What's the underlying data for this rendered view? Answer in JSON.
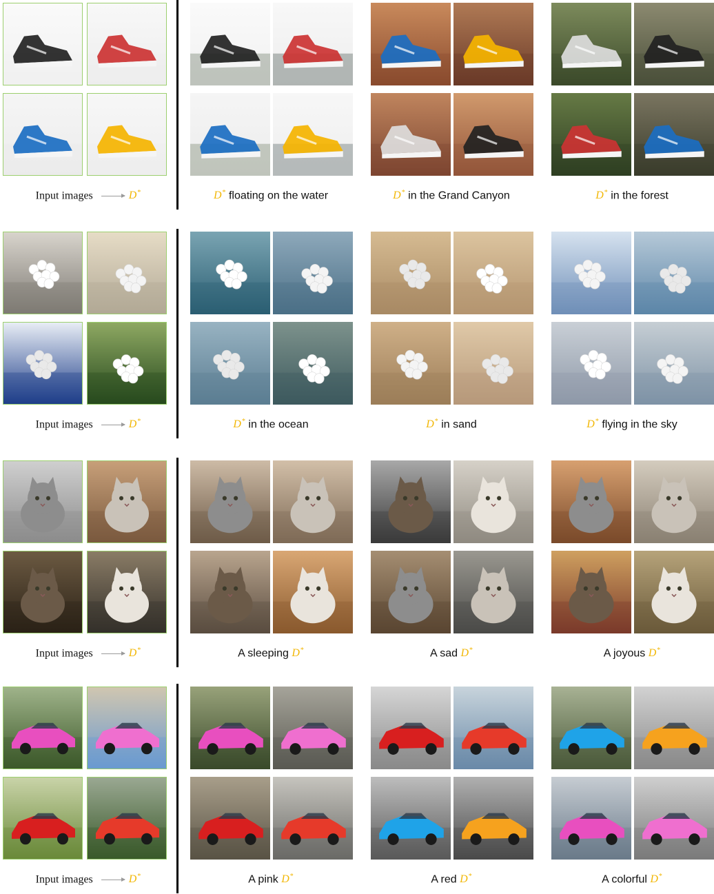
{
  "input_caption": "Input images",
  "token": "D",
  "token_sup": "*",
  "rows": [
    {
      "subject": "sneakers",
      "captions": [
        {
          "pre": "",
          "post": "floating on the water"
        },
        {
          "pre": "",
          "post": "in the Grand Canyon"
        },
        {
          "pre": "",
          "post": "in the forest"
        }
      ]
    },
    {
      "subject": "balloons",
      "captions": [
        {
          "pre": "",
          "post": "in the ocean"
        },
        {
          "pre": "",
          "post": "in sand"
        },
        {
          "pre": "",
          "post": "flying in the sky"
        }
      ]
    },
    {
      "subject": "cat",
      "captions": [
        {
          "pre": "A sleeping",
          "post": ""
        },
        {
          "pre": "A sad",
          "post": ""
        },
        {
          "pre": "A joyous",
          "post": ""
        }
      ]
    },
    {
      "subject": "car",
      "captions": [
        {
          "pre": "A pink",
          "post": ""
        },
        {
          "pre": "A red",
          "post": ""
        },
        {
          "pre": "A colorful",
          "post": ""
        }
      ]
    }
  ],
  "colors": {
    "token": "#f2b705",
    "input_border": "#9ccf6e",
    "divider": "#000000"
  }
}
